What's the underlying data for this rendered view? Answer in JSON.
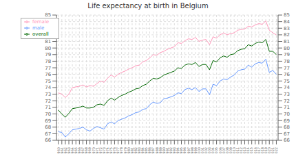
{
  "chart_data": {
    "type": "line",
    "title": "Life expectancy at birth in Belgium",
    "x": [
      1960,
      1961,
      1962,
      1963,
      1964,
      1965,
      1966,
      1967,
      1968,
      1969,
      1970,
      1971,
      1972,
      1973,
      1974,
      1975,
      1976,
      1977,
      1978,
      1979,
      1980,
      1981,
      1982,
      1983,
      1984,
      1985,
      1986,
      1987,
      1988,
      1989,
      1990,
      1991,
      1992,
      1993,
      1994,
      1995,
      1996,
      1997,
      1998,
      1999,
      2000,
      2001,
      2002,
      2003,
      2004,
      2005,
      2006,
      2007,
      2008,
      2009,
      2010,
      2011,
      2012,
      2013,
      2014,
      2015,
      2016,
      2017,
      2018,
      2019,
      2020,
      2021,
      2022
    ],
    "series": [
      {
        "name": "female",
        "color": "#ff99bb",
        "values": [
          73.2,
          73.0,
          72.5,
          73.0,
          74.0,
          74.1,
          74.2,
          74.4,
          74.1,
          74.3,
          74.2,
          74.6,
          75.0,
          74.8,
          75.4,
          75.9,
          75.6,
          76.0,
          76.3,
          76.5,
          76.8,
          77.0,
          77.3,
          77.4,
          77.9,
          78.1,
          78.5,
          79.0,
          78.9,
          79.3,
          79.5,
          79.8,
          80.0,
          80.2,
          80.8,
          80.7,
          81.1,
          81.4,
          81.3,
          81.6,
          81.0,
          81.2,
          81.3,
          80.5,
          81.7,
          81.5,
          82.0,
          82.3,
          82.0,
          82.2,
          82.3,
          82.7,
          82.8,
          82.9,
          83.3,
          83.2,
          83.5,
          83.7,
          83.6,
          84.1,
          82.7,
          82.3,
          82.0
        ]
      },
      {
        "name": "overall",
        "color": "#006600",
        "values": [
          70.6,
          70.0,
          69.5,
          70.1,
          70.8,
          70.9,
          71.0,
          71.2,
          70.9,
          70.9,
          71.0,
          71.4,
          71.5,
          71.3,
          72.0,
          72.4,
          72.1,
          72.5,
          72.8,
          73.0,
          73.3,
          73.5,
          73.8,
          73.9,
          74.3,
          74.5,
          75.0,
          75.4,
          75.3,
          75.5,
          75.9,
          76.1,
          76.3,
          76.5,
          77.0,
          76.9,
          77.4,
          77.6,
          77.5,
          77.8,
          77.2,
          77.5,
          77.5,
          76.7,
          78.1,
          77.9,
          78.5,
          78.8,
          78.6,
          79.0,
          79.1,
          79.6,
          79.8,
          79.9,
          80.5,
          80.3,
          80.7,
          80.9,
          80.8,
          81.3,
          79.5,
          79.5,
          79.0
        ]
      },
      {
        "name": "male",
        "color": "#6699ff",
        "values": [
          67.3,
          67.2,
          66.5,
          67.0,
          67.6,
          67.7,
          67.8,
          68.0,
          67.6,
          67.4,
          67.8,
          68.1,
          67.9,
          67.7,
          68.5,
          68.8,
          68.5,
          69.0,
          69.2,
          69.4,
          69.7,
          69.9,
          70.2,
          70.3,
          70.7,
          70.8,
          71.4,
          71.8,
          71.6,
          71.7,
          72.3,
          72.4,
          72.6,
          72.8,
          73.2,
          73.1,
          73.7,
          73.9,
          73.7,
          74.0,
          73.4,
          73.8,
          73.8,
          72.9,
          74.5,
          74.3,
          75.0,
          75.3,
          75.2,
          75.6,
          75.9,
          76.5,
          76.7,
          76.8,
          77.4,
          77.1,
          77.6,
          77.8,
          77.7,
          78.3,
          76.3,
          76.6,
          76.0
        ]
      }
    ],
    "xlim": [
      1959.5,
      2022.5
    ],
    "xticks": [
      1960,
      1961,
      1962,
      1963,
      1964,
      1965,
      1966,
      1967,
      1968,
      1969,
      1970,
      1971,
      1972,
      1973,
      1974,
      1975,
      1976,
      1977,
      1978,
      1979,
      1980,
      1981,
      1982,
      1983,
      1984,
      1985,
      1986,
      1987,
      1988,
      1989,
      1990,
      1991,
      1992,
      1993,
      1994,
      1995,
      1996,
      1997,
      1998,
      1999,
      2000,
      2001,
      2002,
      2003,
      2004,
      2005,
      2006,
      2007,
      2008,
      2009,
      2010,
      2011,
      2012,
      2013,
      2014,
      2015,
      2016,
      2017,
      2018,
      2019,
      2020,
      2021,
      2022
    ],
    "ylim": [
      66,
      85
    ],
    "yticks": [
      66,
      67,
      68,
      69,
      70,
      71,
      72,
      73,
      74,
      75,
      76,
      77,
      78,
      79,
      80,
      81,
      82,
      83,
      84,
      85
    ],
    "y2lim": [
      66,
      85
    ],
    "y2ticks": [
      66,
      67,
      68,
      69,
      70,
      71,
      72,
      73,
      74,
      75,
      76,
      77,
      78,
      79,
      80,
      81,
      82,
      83,
      84,
      85
    ],
    "grid": true,
    "legend": "upper left"
  }
}
